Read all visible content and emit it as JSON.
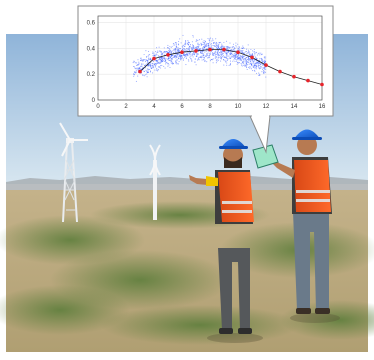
{
  "chart_data": {
    "type": "scatter",
    "xlim": [
      0,
      16
    ],
    "ylim": [
      0,
      0.65
    ],
    "x_ticks": [
      "0",
      "2",
      "4",
      "6",
      "8",
      "10",
      "12",
      "14",
      "16"
    ],
    "y_ticks": [
      "0",
      "0.2",
      "0.4",
      "0.6"
    ],
    "grid": true,
    "series": [
      {
        "style": "dense blue scatter cloud",
        "color": "#3a5cff",
        "approximate_range_x": [
          2.5,
          12
        ],
        "approximate_center_y": 0.35
      },
      {
        "style": "red markers with black line",
        "color": "#e8232a",
        "x": [
          3,
          4,
          5,
          6,
          7,
          8,
          9,
          10,
          11,
          12,
          13,
          14,
          15,
          16
        ],
        "y": [
          0.22,
          0.32,
          0.35,
          0.37,
          0.38,
          0.39,
          0.39,
          0.37,
          0.33,
          0.27,
          0.22,
          0.18,
          0.15,
          0.12
        ]
      }
    ]
  },
  "scene": {
    "colors": {
      "sky_top": "#8fb4d9",
      "sky_bottom": "#d7e6f0",
      "ground": "#b7a57a",
      "grass": "#6f8d4a",
      "hardhat": "#1f6fe0",
      "vest": "#f05a1c",
      "tablet": "#9ee6c9"
    },
    "icons": [
      "wind-turbine-icon",
      "tablet-icon",
      "hardhat-icon"
    ]
  }
}
